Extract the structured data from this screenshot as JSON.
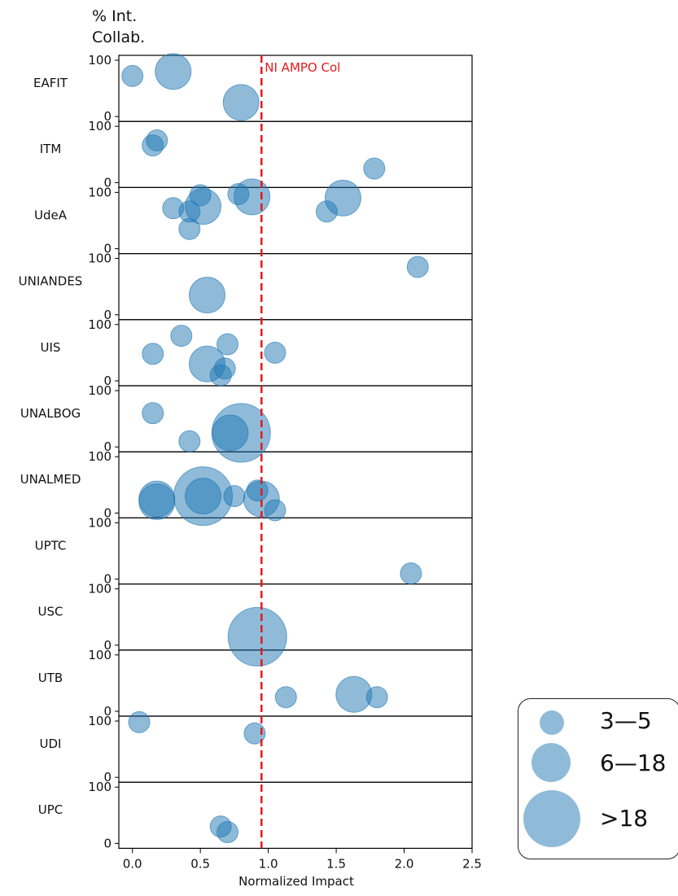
{
  "chart_data": {
    "type": "scatter",
    "ylabel": "% Int.\nCollab.",
    "xlabel": "Normalized Impact",
    "xlim": [
      -0.1,
      2.5
    ],
    "x_ticks": [
      "0.0",
      "0.5",
      "1.0",
      "1.5",
      "2.0",
      "2.5"
    ],
    "ylim": [
      0,
      100
    ],
    "y_ticks": [
      "0",
      "100"
    ],
    "reference_line": {
      "x": 0.95,
      "label": "NI AMPO Col",
      "color": "#e41a1c",
      "style": "dashed"
    },
    "marker_color": "#1f77b4",
    "marker_alpha": 0.5,
    "panels": [
      {
        "name": "EAFIT",
        "points": [
          {
            "x": 0.0,
            "y": 72,
            "size_class": "3-5"
          },
          {
            "x": 0.3,
            "y": 80,
            "size_class": "6-18"
          },
          {
            "x": 0.8,
            "y": 25,
            "size_class": "6-18"
          }
        ]
      },
      {
        "name": "ITM",
        "points": [
          {
            "x": 0.15,
            "y": 66,
            "size_class": "3-5"
          },
          {
            "x": 0.18,
            "y": 75,
            "size_class": "3-5"
          },
          {
            "x": 1.78,
            "y": 25,
            "size_class": "3-5"
          }
        ]
      },
      {
        "name": "UdeA",
        "points": [
          {
            "x": 0.3,
            "y": 72,
            "size_class": "3-5"
          },
          {
            "x": 0.42,
            "y": 66,
            "size_class": "3-5"
          },
          {
            "x": 0.42,
            "y": 35,
            "size_class": "3-5"
          },
          {
            "x": 0.5,
            "y": 95,
            "size_class": "3-5"
          },
          {
            "x": 0.52,
            "y": 75,
            "size_class": "6-18"
          },
          {
            "x": 0.78,
            "y": 97,
            "size_class": "3-5"
          },
          {
            "x": 0.88,
            "y": 92,
            "size_class": "6-18"
          },
          {
            "x": 1.43,
            "y": 66,
            "size_class": "3-5"
          },
          {
            "x": 1.55,
            "y": 90,
            "size_class": "6-18"
          }
        ]
      },
      {
        "name": "UNIANDES",
        "points": [
          {
            "x": 0.55,
            "y": 35,
            "size_class": "6-18"
          },
          {
            "x": 2.1,
            "y": 85,
            "size_class": "3-5"
          }
        ]
      },
      {
        "name": "UIS",
        "points": [
          {
            "x": 0.15,
            "y": 48,
            "size_class": "3-5"
          },
          {
            "x": 0.36,
            "y": 80,
            "size_class": "3-5"
          },
          {
            "x": 0.55,
            "y": 30,
            "size_class": "6-18"
          },
          {
            "x": 0.65,
            "y": 10,
            "size_class": "3-5"
          },
          {
            "x": 0.68,
            "y": 22,
            "size_class": "3-5"
          },
          {
            "x": 0.7,
            "y": 65,
            "size_class": "3-5"
          },
          {
            "x": 1.05,
            "y": 50,
            "size_class": "3-5"
          }
        ]
      },
      {
        "name": "UNALBOG",
        "points": [
          {
            "x": 0.15,
            "y": 60,
            "size_class": "3-5"
          },
          {
            "x": 0.42,
            "y": 10,
            "size_class": "3-5"
          },
          {
            "x": 0.72,
            "y": 25,
            "size_class": "6-18"
          },
          {
            "x": 0.8,
            "y": 25,
            "size_class": ">18"
          }
        ]
      },
      {
        "name": "UNALMED",
        "points": [
          {
            "x": 0.18,
            "y": 25,
            "size_class": "6-18"
          },
          {
            "x": 0.18,
            "y": 20,
            "size_class": "6-18"
          },
          {
            "x": 0.52,
            "y": 30,
            "size_class": ">18"
          },
          {
            "x": 0.52,
            "y": 30,
            "size_class": "6-18"
          },
          {
            "x": 0.75,
            "y": 30,
            "size_class": "3-5"
          },
          {
            "x": 0.92,
            "y": 40,
            "size_class": "3-5"
          },
          {
            "x": 0.95,
            "y": 25,
            "size_class": "6-18"
          },
          {
            "x": 1.05,
            "y": 5,
            "size_class": "3-5"
          }
        ]
      },
      {
        "name": "UPTC",
        "points": [
          {
            "x": 2.05,
            "y": 10,
            "size_class": "3-5"
          }
        ]
      },
      {
        "name": "USC",
        "points": [
          {
            "x": 0.92,
            "y": 15,
            "size_class": ">18"
          }
        ]
      },
      {
        "name": "UTB",
        "points": [
          {
            "x": 1.13,
            "y": 25,
            "size_class": "3-5"
          },
          {
            "x": 1.63,
            "y": 30,
            "size_class": "6-18"
          },
          {
            "x": 1.8,
            "y": 25,
            "size_class": "3-5"
          }
        ]
      },
      {
        "name": "UDI",
        "points": [
          {
            "x": 0.05,
            "y": 98,
            "size_class": "3-5"
          },
          {
            "x": 0.9,
            "y": 78,
            "size_class": "3-5"
          }
        ]
      },
      {
        "name": "UPC",
        "points": [
          {
            "x": 0.65,
            "y": 30,
            "size_class": "3-5"
          },
          {
            "x": 0.7,
            "y": 20,
            "size_class": "3-5"
          }
        ]
      }
    ],
    "legend": {
      "placement": "bottom-right, outside axes",
      "items": [
        {
          "label": "3—5",
          "size_class": "3-5"
        },
        {
          "label": "6—18",
          "size_class": "6-18"
        },
        {
          "label": ">18",
          "size_class": ">18"
        }
      ]
    }
  }
}
